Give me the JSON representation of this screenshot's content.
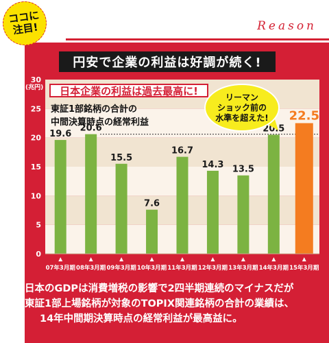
{
  "badge": {
    "line1": "ココに",
    "line2": "注目!"
  },
  "section_label": "Reason",
  "banner": "円安で企業の利益は好調が続く!",
  "headline": "日本企業の利益は過去最高に!",
  "description": [
    "東証1部銘柄の合計の",
    "中間決算時点の経常利益"
  ],
  "callout": [
    "リーマン",
    "ショック前の",
    "水準を超えた!"
  ],
  "bottom_text": [
    "日本のGDPは消費増税の影響で2四半期連続のマイナスだが",
    "東証1部上場銘柄が対象のTOPIX関連銘柄の合計の業績は、",
    "14年中間期決算時点の経常利益が最高益に。"
  ],
  "colors": {
    "panel_red": "#d41f35",
    "bar_green": "#7cb342",
    "bar_highlight": "#f47c20",
    "callout_yellow": "#f7ec1e",
    "value_highlight": "#f47c20"
  },
  "chart_data": {
    "type": "bar",
    "ylabel": "(兆円)",
    "ylim": [
      0,
      30
    ],
    "yticks": [
      0,
      5,
      10,
      15,
      20,
      25,
      30
    ],
    "categories": [
      "07年3月期",
      "08年3月期",
      "09年3月期",
      "10年3月期",
      "11年3月期",
      "12年3月期",
      "13年3月期",
      "14年3月期",
      "15年3月期"
    ],
    "values": [
      19.6,
      20.6,
      15.5,
      7.6,
      16.7,
      14.3,
      13.5,
      20.5,
      22.5
    ],
    "labels": [
      "19.6",
      "20.6",
      "15.5",
      "7.6",
      "16.7",
      "14.3",
      "13.5",
      "20.5",
      "22.5"
    ],
    "highlight_index": 8,
    "reference_value": 20.6,
    "grid": "horizontal bands"
  }
}
